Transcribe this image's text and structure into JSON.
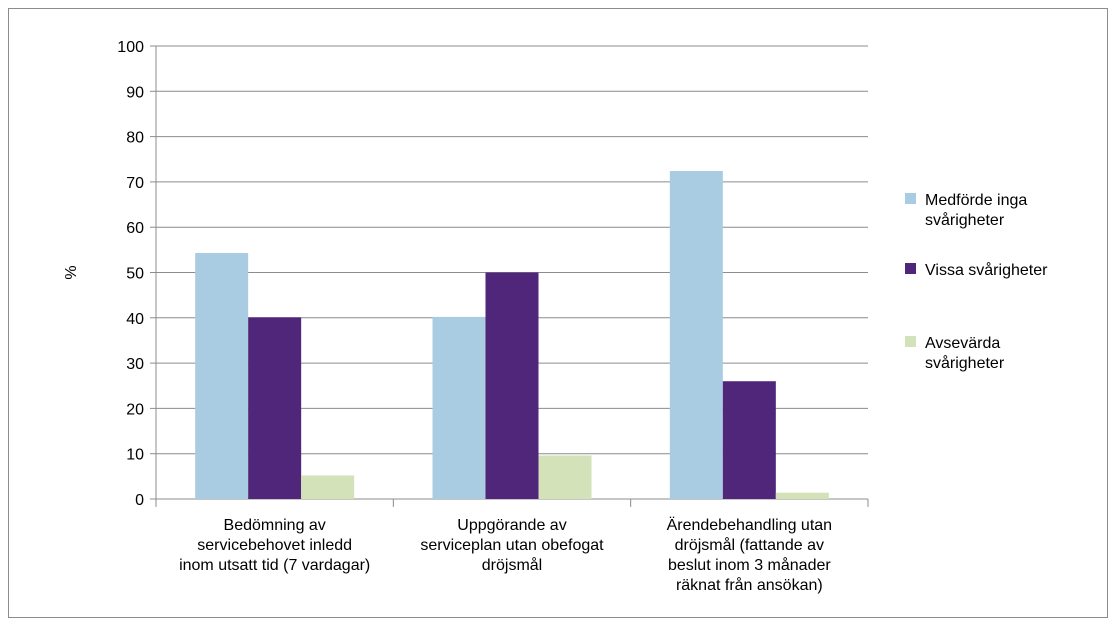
{
  "chart_data": {
    "type": "bar",
    "title": "",
    "xlabel": "",
    "ylabel": "%",
    "ylim": [
      0,
      100
    ],
    "yticks": [
      0,
      10,
      20,
      30,
      40,
      50,
      60,
      70,
      80,
      90,
      100
    ],
    "grid": true,
    "legend_position": "right",
    "categories": [
      [
        "Bedömning av",
        "servicebehovet inledd",
        "inom utsatt tid (7 vardagar)"
      ],
      [
        "Uppgörande av",
        "serviceplan utan obefogat",
        "dröjsmål"
      ],
      [
        "Ärendebehandling utan",
        "dröjsmål (fattande av",
        "beslut inom 3 månader",
        "räknat från ansökan)"
      ]
    ],
    "series": [
      {
        "name": [
          "Medförde inga",
          "svårigheter"
        ],
        "color": "#a9cce3",
        "values": [
          54.3,
          40.2,
          72.4
        ]
      },
      {
        "name": [
          "Vissa svårigheter"
        ],
        "color": "#4f2679",
        "values": [
          40.1,
          50.0,
          26.0
        ]
      },
      {
        "name": [
          "Avsevärda",
          "svårigheter"
        ],
        "color": "#d3e2b8",
        "values": [
          5.2,
          9.6,
          1.4
        ]
      }
    ]
  }
}
